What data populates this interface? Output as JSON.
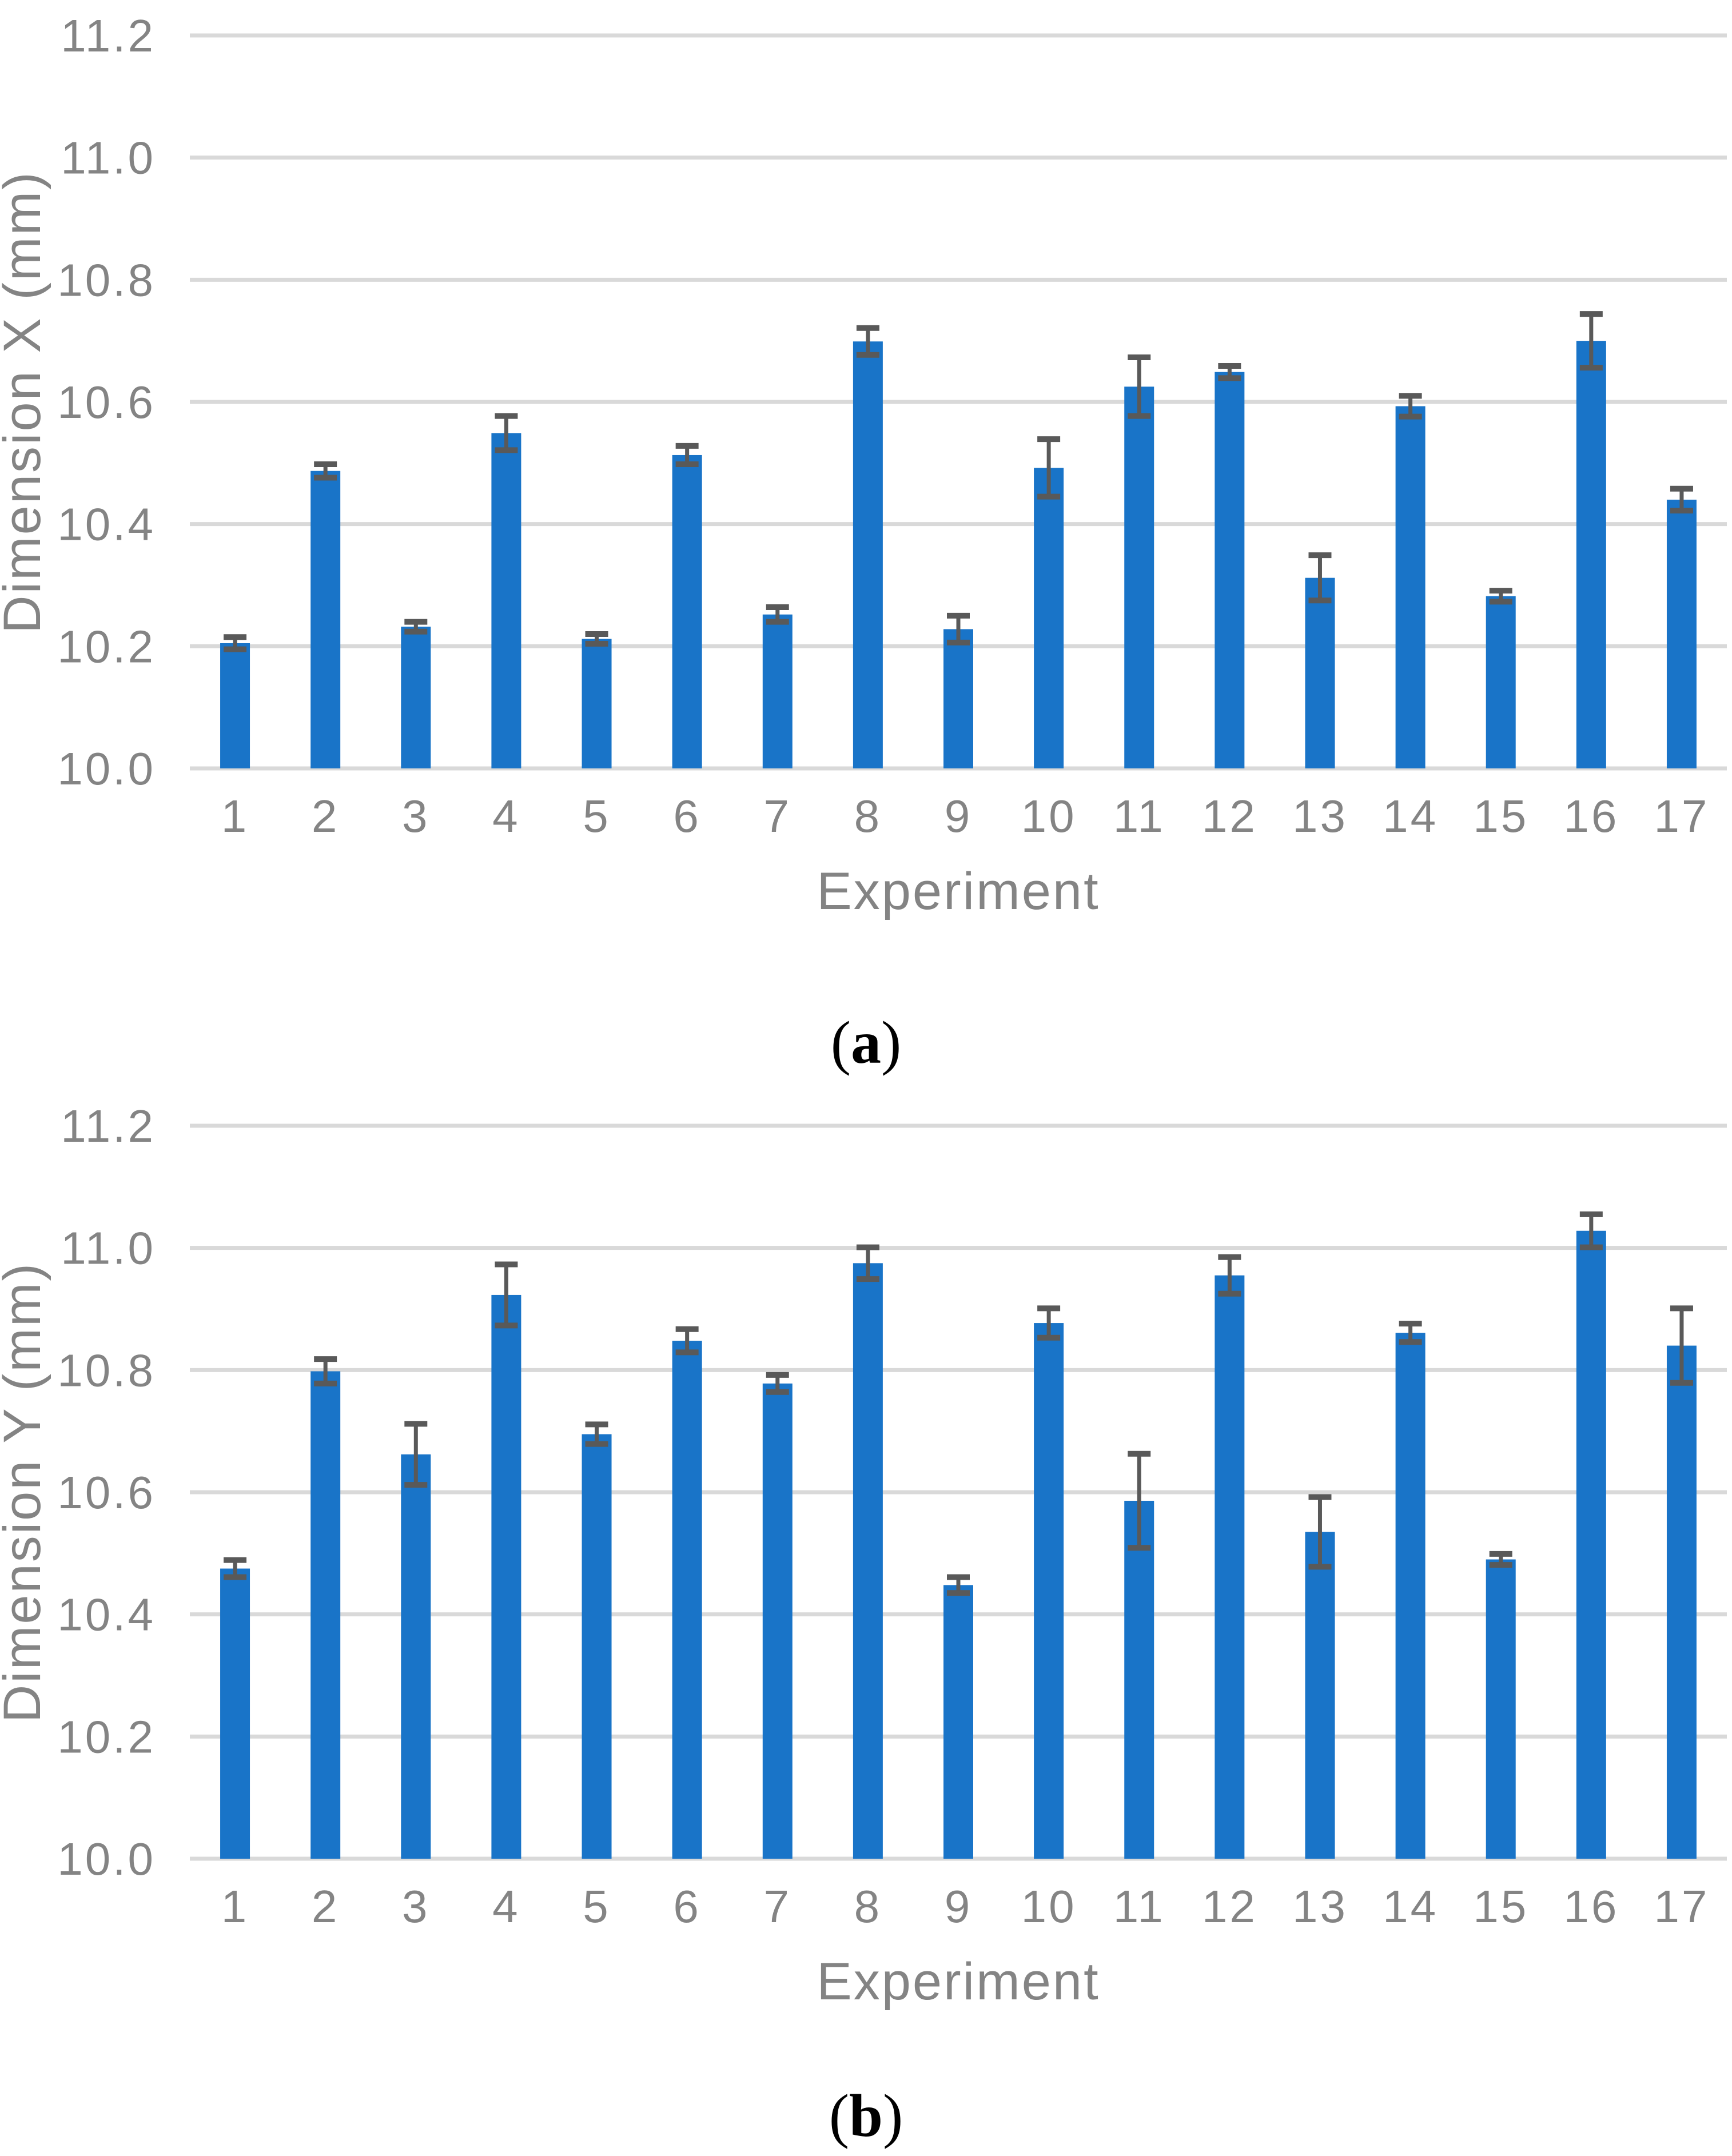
{
  "figure": {
    "captions": [
      {
        "open": "(",
        "letter": "a",
        "close": ")"
      },
      {
        "open": "(",
        "letter": "b",
        "close": ")"
      }
    ]
  },
  "chart_data": [
    {
      "type": "bar",
      "panel": "a",
      "title": "",
      "xlabel": "Experiment",
      "ylabel": "Dimension X (mm)",
      "categories": [
        "1",
        "2",
        "3",
        "4",
        "5",
        "6",
        "7",
        "8",
        "9",
        "10",
        "11",
        "12",
        "13",
        "14",
        "15",
        "16",
        "17"
      ],
      "values": [
        10.205,
        10.487,
        10.232,
        10.549,
        10.212,
        10.513,
        10.252,
        10.699,
        10.228,
        10.492,
        10.625,
        10.649,
        10.312,
        10.593,
        10.282,
        10.7,
        10.44
      ],
      "error_bars": [
        0.01,
        0.011,
        0.008,
        0.028,
        0.008,
        0.015,
        0.012,
        0.022,
        0.022,
        0.047,
        0.048,
        0.01,
        0.037,
        0.017,
        0.009,
        0.044,
        0.018
      ],
      "ylim": [
        10.0,
        11.2
      ],
      "ytick_step": 0.2,
      "yticks": [
        "10.0",
        "10.2",
        "10.4",
        "10.6",
        "10.8",
        "11.0",
        "11.2"
      ],
      "grid": true,
      "legend": "none",
      "bar_color": "#1974C8",
      "error_color": "#595959",
      "gridline_color": "#D9D9D9",
      "text_color": "#848484"
    },
    {
      "type": "bar",
      "panel": "b",
      "title": "",
      "xlabel": "Experiment",
      "ylabel": "Dimension Y (mm)",
      "categories": [
        "1",
        "2",
        "3",
        "4",
        "5",
        "6",
        "7",
        "8",
        "9",
        "10",
        "11",
        "12",
        "13",
        "14",
        "15",
        "16",
        "17"
      ],
      "values": [
        10.475,
        10.798,
        10.662,
        10.923,
        10.695,
        10.848,
        10.778,
        10.975,
        10.448,
        10.877,
        10.586,
        10.955,
        10.535,
        10.861,
        10.49,
        11.028,
        10.84
      ],
      "error_bars": [
        0.014,
        0.02,
        0.05,
        0.05,
        0.016,
        0.019,
        0.014,
        0.026,
        0.013,
        0.024,
        0.077,
        0.03,
        0.057,
        0.015,
        0.009,
        0.027,
        0.061
      ],
      "ylim": [
        10.0,
        11.2
      ],
      "ytick_step": 0.2,
      "yticks": [
        "10.0",
        "10.2",
        "10.4",
        "10.6",
        "10.8",
        "11.0",
        "11.2"
      ],
      "grid": true,
      "legend": "none",
      "bar_color": "#1974C8",
      "error_color": "#595959",
      "gridline_color": "#D9D9D9",
      "text_color": "#848484"
    }
  ]
}
